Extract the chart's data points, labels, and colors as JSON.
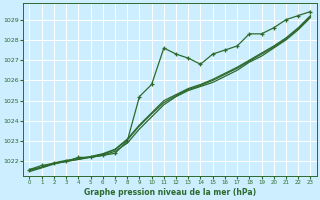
{
  "title": "Graphe pression niveau de la mer (hPa)",
  "background_color": "#cceeff",
  "grid_color": "#ffffff",
  "line_color": "#2d6a2d",
  "xlim": [
    -0.5,
    23.5
  ],
  "ylim": [
    1021.3,
    1029.8
  ],
  "xticks": [
    0,
    1,
    2,
    3,
    4,
    5,
    6,
    7,
    8,
    9,
    10,
    11,
    12,
    13,
    14,
    15,
    16,
    17,
    18,
    19,
    20,
    21,
    22,
    23
  ],
  "yticks": [
    1022,
    1023,
    1024,
    1025,
    1026,
    1027,
    1028,
    1029
  ],
  "x": [
    0,
    1,
    2,
    3,
    4,
    5,
    6,
    7,
    8,
    9,
    10,
    11,
    12,
    13,
    14,
    15,
    16,
    17,
    18,
    19,
    20,
    21,
    22,
    23
  ],
  "pressure_values": [
    1021.6,
    1021.8,
    1021.9,
    1022.0,
    1022.2,
    1022.2,
    1022.3,
    1022.4,
    1023.0,
    1025.2,
    1025.8,
    1027.6,
    1027.3,
    1027.1,
    1026.8,
    1027.3,
    1027.5,
    1027.7,
    1028.3,
    1028.3,
    1028.6,
    1029.0,
    1029.2,
    1029.4
  ],
  "smooth1": [
    1021.6,
    1021.7,
    1021.9,
    1022.0,
    1022.1,
    1022.2,
    1022.3,
    1022.5,
    1022.9,
    1023.6,
    1024.2,
    1024.8,
    1025.2,
    1025.5,
    1025.7,
    1025.9,
    1026.2,
    1026.5,
    1026.9,
    1027.2,
    1027.6,
    1028.0,
    1028.5,
    1029.1
  ],
  "smooth2": [
    1021.55,
    1021.72,
    1021.93,
    1022.05,
    1022.14,
    1022.24,
    1022.38,
    1022.6,
    1023.1,
    1023.8,
    1024.4,
    1025.0,
    1025.3,
    1025.6,
    1025.8,
    1026.05,
    1026.35,
    1026.65,
    1027.0,
    1027.35,
    1027.7,
    1028.1,
    1028.6,
    1029.2
  ],
  "smooth3": [
    1021.5,
    1021.68,
    1021.87,
    1022.0,
    1022.1,
    1022.22,
    1022.35,
    1022.58,
    1023.05,
    1023.75,
    1024.35,
    1024.9,
    1025.25,
    1025.55,
    1025.75,
    1026.0,
    1026.3,
    1026.6,
    1026.95,
    1027.3,
    1027.65,
    1028.05,
    1028.55,
    1029.15
  ]
}
